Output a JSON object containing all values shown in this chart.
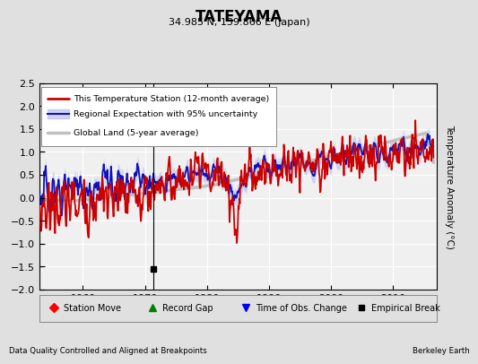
{
  "title": "TATEYAMA",
  "subtitle": "34.985 N, 139.866 E (Japan)",
  "ylabel": "Temperature Anomaly (°C)",
  "footer_left": "Data Quality Controlled and Aligned at Breakpoints",
  "footer_right": "Berkeley Earth",
  "xlim": [
    1953,
    2017
  ],
  "ylim": [
    -2.0,
    2.5
  ],
  "yticks": [
    -2.0,
    -1.5,
    -1.0,
    -0.5,
    0.0,
    0.5,
    1.0,
    1.5,
    2.0,
    2.5
  ],
  "xticks": [
    1960,
    1970,
    1980,
    1990,
    2000,
    2010
  ],
  "bg_color": "#e0e0e0",
  "plot_bg_color": "#f0f0f0",
  "grid_color": "#ffffff",
  "red_color": "#cc0000",
  "blue_color": "#1111bb",
  "blue_fill_color": "#b0b8e8",
  "gray_color": "#c0c0c0",
  "vertical_line_x": 1971.3,
  "empirical_break_x": 1971.3,
  "empirical_break_y": -1.55,
  "legend_labels": [
    "This Temperature Station (12-month average)",
    "Regional Expectation with 95% uncertainty",
    "Global Land (5-year average)"
  ],
  "marker_legend": [
    "Station Move",
    "Record Gap",
    "Time of Obs. Change",
    "Empirical Break"
  ]
}
